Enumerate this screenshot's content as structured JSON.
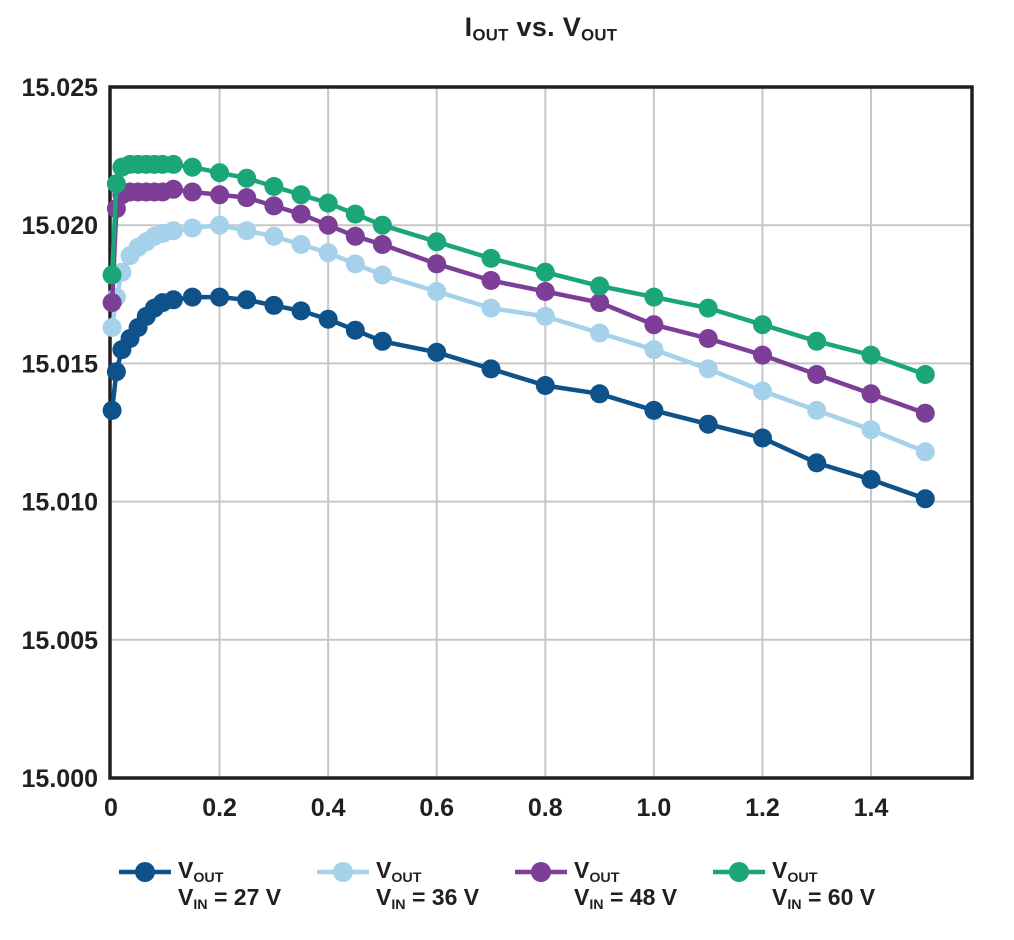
{
  "title": {
    "part1_main": "I",
    "part1_sub": "OUT",
    "middle": " vs. ",
    "part2_main": "V",
    "part2_sub": "OUT"
  },
  "colors": {
    "axis": "#231f20",
    "grid": "#c7c7c7",
    "text": "#231f20",
    "background": "#ffffff",
    "vin27": "#0e5289",
    "vin36": "#a6d1ea",
    "vin48": "#7d3e98",
    "vin60": "#1aa679"
  },
  "chart_data": {
    "type": "line",
    "title": "IOUT vs. VOUT",
    "xlabel": "",
    "ylabel": "",
    "xlim": [
      0,
      1.586
    ],
    "ylim": [
      15.0,
      15.025
    ],
    "grid": true,
    "legend_position": "bottom",
    "x_tick_values": [
      0,
      0.2,
      0.4,
      0.6,
      0.8,
      1.0,
      1.2,
      1.4
    ],
    "x_tick_labels": [
      "0",
      "0.2",
      "0.4",
      "0.6",
      "0.8",
      "1.0",
      "1.2",
      "1.4"
    ],
    "y_tick_values": [
      15.0,
      15.005,
      15.01,
      15.015,
      15.02,
      15.025
    ],
    "y_tick_labels": [
      "15.000",
      "15.005",
      "15.010",
      "15.015",
      "15.020",
      "15.025"
    ],
    "x": [
      0.002,
      0.01,
      0.02,
      0.035,
      0.05,
      0.065,
      0.08,
      0.095,
      0.115,
      0.15,
      0.2,
      0.25,
      0.3,
      0.35,
      0.4,
      0.45,
      0.5,
      0.6,
      0.7,
      0.8,
      0.9,
      1.0,
      1.1,
      1.2,
      1.3,
      1.4,
      1.5
    ],
    "series": [
      {
        "name": "VOUT, VIN = 27 V",
        "color": "#0e5289",
        "values": [
          15.0133,
          15.0147,
          15.0155,
          15.0159,
          15.0163,
          15.0167,
          15.017,
          15.0172,
          15.0173,
          15.0174,
          15.0174,
          15.0173,
          15.0171,
          15.0169,
          15.0166,
          15.0162,
          15.0158,
          15.0154,
          15.0148,
          15.0142,
          15.0139,
          15.0133,
          15.0128,
          15.0123,
          15.0114,
          15.0108,
          15.0101
        ]
      },
      {
        "name": "VOUT, VIN = 36 V",
        "color": "#a6d1ea",
        "values": [
          15.0163,
          15.0174,
          15.0183,
          15.0189,
          15.0192,
          15.0194,
          15.0196,
          15.0197,
          15.0198,
          15.0199,
          15.02,
          15.0198,
          15.0196,
          15.0193,
          15.019,
          15.0186,
          15.0182,
          15.0176,
          15.017,
          15.0167,
          15.0161,
          15.0155,
          15.0148,
          15.014,
          15.0133,
          15.0126,
          15.0118
        ]
      },
      {
        "name": "VOUT, VIN = 48 V",
        "color": "#7d3e98",
        "values": [
          15.0172,
          15.0206,
          15.0211,
          15.0212,
          15.0212,
          15.0212,
          15.0212,
          15.0212,
          15.0213,
          15.0212,
          15.0211,
          15.021,
          15.0207,
          15.0204,
          15.02,
          15.0196,
          15.0193,
          15.0186,
          15.018,
          15.0176,
          15.0172,
          15.0164,
          15.0159,
          15.0153,
          15.0146,
          15.0139,
          15.0132
        ]
      },
      {
        "name": "VOUT, VIN = 60 V",
        "color": "#1aa679",
        "values": [
          15.0182,
          15.0215,
          15.0221,
          15.0222,
          15.0222,
          15.0222,
          15.0222,
          15.0222,
          15.0222,
          15.0221,
          15.0219,
          15.0217,
          15.0214,
          15.0211,
          15.0208,
          15.0204,
          15.02,
          15.0194,
          15.0188,
          15.0183,
          15.0178,
          15.0174,
          15.017,
          15.0164,
          15.0158,
          15.0153,
          15.0146
        ]
      }
    ]
  },
  "legend": {
    "items": [
      {
        "line1_main": "V",
        "line1_sub": "OUT",
        "line2_main": "V",
        "line2_sub": "IN",
        "line2_rest": " = 27 V"
      },
      {
        "line1_main": "V",
        "line1_sub": "OUT",
        "line2_main": "V",
        "line2_sub": "IN",
        "line2_rest": " = 36 V"
      },
      {
        "line1_main": "V",
        "line1_sub": "OUT",
        "line2_main": "V",
        "line2_sub": "IN",
        "line2_rest": " = 48 V"
      },
      {
        "line1_main": "V",
        "line1_sub": "OUT",
        "line2_main": "V",
        "line2_sub": "IN",
        "line2_rest": " = 60 V"
      }
    ]
  }
}
